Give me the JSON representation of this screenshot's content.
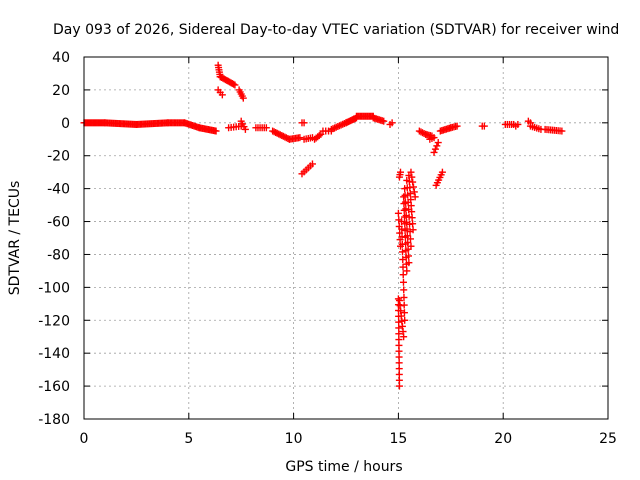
{
  "chart_data": {
    "type": "scatter",
    "title": "Day 093 of 2026, Sidereal Day-to-day VTEC variation (SDTVAR) for receiver wind",
    "xlabel": "GPS time / hours",
    "ylabel": "SDTVAR / TECUs",
    "xlim": [
      0,
      25
    ],
    "ylim": [
      -180,
      40
    ],
    "xticks": [
      0,
      5,
      10,
      15,
      20,
      25
    ],
    "yticks": [
      40,
      20,
      0,
      -20,
      -40,
      -60,
      -80,
      -100,
      -120,
      -140,
      -160,
      -180
    ],
    "grid": true,
    "marker": "+",
    "color": "#ff0000",
    "series": [
      {
        "name": "SDTVAR",
        "segments": [
          {
            "from": [
              0.0,
              0
            ],
            "to": [
              1.0,
              0
            ],
            "n": 20
          },
          {
            "from": [
              1.0,
              0
            ],
            "to": [
              2.5,
              -1
            ],
            "n": 25
          },
          {
            "from": [
              2.5,
              -1
            ],
            "to": [
              4.0,
              0
            ],
            "n": 25
          },
          {
            "from": [
              4.0,
              0
            ],
            "to": [
              4.8,
              0
            ],
            "n": 14
          },
          {
            "from": [
              4.8,
              0
            ],
            "to": [
              5.5,
              -3
            ],
            "n": 12
          },
          {
            "from": [
              5.5,
              -3
            ],
            "to": [
              6.3,
              -5
            ],
            "n": 14
          },
          {
            "from": [
              6.4,
              35
            ],
            "to": [
              6.5,
              28
            ],
            "n": 6
          },
          {
            "from": [
              6.5,
              28
            ],
            "to": [
              7.2,
              23
            ],
            "n": 12
          },
          {
            "from": [
              7.4,
              20
            ],
            "to": [
              7.6,
              15
            ],
            "n": 5
          },
          {
            "from": [
              6.4,
              20
            ],
            "to": [
              6.6,
              17
            ],
            "n": 3
          },
          {
            "from": [
              6.9,
              -3
            ],
            "to": [
              7.5,
              -2
            ],
            "n": 6
          },
          {
            "from": [
              7.5,
              1
            ],
            "to": [
              7.7,
              -4
            ],
            "n": 4
          },
          {
            "from": [
              8.2,
              -3
            ],
            "to": [
              8.7,
              -3
            ],
            "n": 6
          },
          {
            "from": [
              9.0,
              -5
            ],
            "to": [
              9.8,
              -10
            ],
            "n": 12
          },
          {
            "from": [
              9.8,
              -10
            ],
            "to": [
              10.3,
              -9
            ],
            "n": 8
          },
          {
            "from": [
              10.4,
              0
            ],
            "to": [
              10.5,
              0
            ],
            "n": 2
          },
          {
            "from": [
              10.5,
              -10
            ],
            "to": [
              10.9,
              -9
            ],
            "n": 5
          },
          {
            "from": [
              10.4,
              -31
            ],
            "to": [
              10.9,
              -25
            ],
            "n": 6
          },
          {
            "from": [
              11.0,
              -10
            ],
            "to": [
              11.3,
              -7
            ],
            "n": 5
          },
          {
            "from": [
              11.4,
              -5
            ],
            "to": [
              11.8,
              -5
            ],
            "n": 4
          },
          {
            "from": [
              11.8,
              -4
            ],
            "to": [
              12.5,
              0
            ],
            "n": 10
          },
          {
            "from": [
              12.5,
              0
            ],
            "to": [
              13.0,
              3
            ],
            "n": 10
          },
          {
            "from": [
              13.0,
              4
            ],
            "to": [
              13.8,
              4
            ],
            "n": 14
          },
          {
            "from": [
              13.8,
              3
            ],
            "to": [
              14.3,
              1
            ],
            "n": 8
          },
          {
            "from": [
              14.6,
              -1
            ],
            "to": [
              14.7,
              0
            ],
            "n": 2
          },
          {
            "from": [
              15.05,
              -33
            ],
            "to": [
              15.1,
              -30
            ],
            "n": 3
          },
          {
            "from": [
              15.0,
              -55
            ],
            "to": [
              15.1,
              -75
            ],
            "n": 6
          },
          {
            "from": [
              15.0,
              -107
            ],
            "to": [
              15.05,
              -160
            ],
            "n": 16
          },
          {
            "from": [
              15.05,
              -108
            ],
            "to": [
              15.25,
              -130
            ],
            "n": 8
          },
          {
            "from": [
              15.15,
              -60
            ],
            "to": [
              15.3,
              -120
            ],
            "n": 14
          },
          {
            "from": [
              15.25,
              -45
            ],
            "to": [
              15.4,
              -90
            ],
            "n": 12
          },
          {
            "from": [
              15.3,
              -40
            ],
            "to": [
              15.5,
              -85
            ],
            "n": 12
          },
          {
            "from": [
              15.4,
              -35
            ],
            "to": [
              15.6,
              -75
            ],
            "n": 10
          },
          {
            "from": [
              15.5,
              -32
            ],
            "to": [
              15.7,
              -65
            ],
            "n": 10
          },
          {
            "from": [
              15.6,
              -30
            ],
            "to": [
              15.8,
              -45
            ],
            "n": 6
          },
          {
            "from": [
              16.0,
              -5
            ],
            "to": [
              16.3,
              -7
            ],
            "n": 5
          },
          {
            "from": [
              16.3,
              -7
            ],
            "to": [
              16.6,
              -8
            ],
            "n": 5
          },
          {
            "from": [
              16.5,
              -10
            ],
            "to": [
              16.7,
              -9
            ],
            "n": 3
          },
          {
            "from": [
              16.7,
              -18
            ],
            "to": [
              16.9,
              -12
            ],
            "n": 4
          },
          {
            "from": [
              16.8,
              -38
            ],
            "to": [
              17.1,
              -30
            ],
            "n": 6
          },
          {
            "from": [
              17.0,
              -5
            ],
            "to": [
              17.5,
              -3
            ],
            "n": 8
          },
          {
            "from": [
              17.5,
              -3
            ],
            "to": [
              17.8,
              -2
            ],
            "n": 5
          },
          {
            "from": [
              19.0,
              -2
            ],
            "to": [
              19.1,
              -2
            ],
            "n": 2
          },
          {
            "from": [
              20.1,
              -1
            ],
            "to": [
              20.5,
              -1
            ],
            "n": 5
          },
          {
            "from": [
              20.6,
              -2
            ],
            "to": [
              20.7,
              -1
            ],
            "n": 2
          },
          {
            "from": [
              21.2,
              1
            ],
            "to": [
              21.3,
              0
            ],
            "n": 2
          },
          {
            "from": [
              21.3,
              -2
            ],
            "to": [
              21.8,
              -4
            ],
            "n": 6
          },
          {
            "from": [
              22.0,
              -4
            ],
            "to": [
              22.8,
              -5
            ],
            "n": 10
          }
        ]
      }
    ]
  }
}
